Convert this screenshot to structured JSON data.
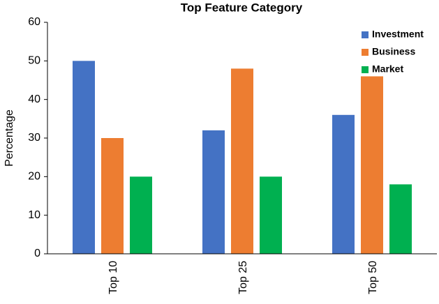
{
  "chart_data": {
    "type": "bar",
    "title": "Top Feature Category",
    "y_label": "Percentage",
    "categories": [
      "Top 10",
      "Top 25",
      "Top 50"
    ],
    "series": [
      {
        "name": "Investment",
        "color": "#4472c4",
        "values": [
          50,
          32,
          36
        ]
      },
      {
        "name": "Business",
        "color": "#ed7d31",
        "values": [
          30,
          48,
          46
        ]
      },
      {
        "name": "Market",
        "color": "#00b050",
        "values": [
          20,
          20,
          18
        ]
      }
    ],
    "ylim": [
      0,
      60
    ],
    "yticks": [
      0,
      10,
      20,
      30,
      40,
      50,
      60
    ],
    "grid": false,
    "legend": "upper right"
  }
}
